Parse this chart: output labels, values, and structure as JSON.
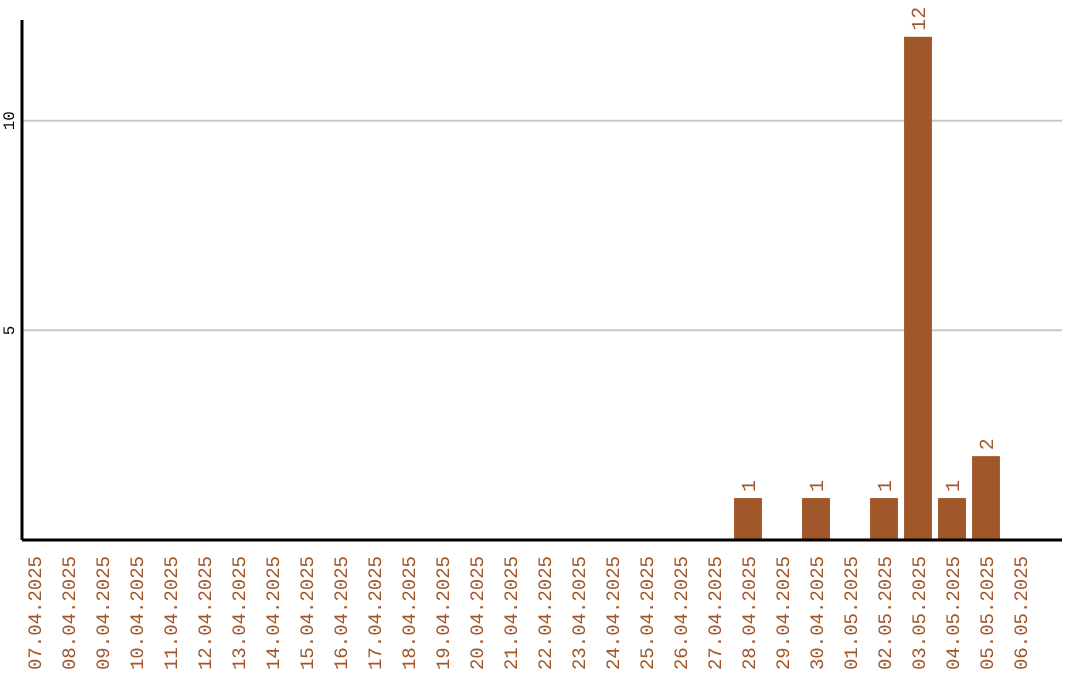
{
  "chart_data": {
    "type": "bar",
    "categories": [
      "07.04.2025",
      "08.04.2025",
      "09.04.2025",
      "10.04.2025",
      "11.04.2025",
      "12.04.2025",
      "13.04.2025",
      "14.04.2025",
      "15.04.2025",
      "16.04.2025",
      "17.04.2025",
      "18.04.2025",
      "19.04.2025",
      "20.04.2025",
      "21.04.2025",
      "22.04.2025",
      "23.04.2025",
      "24.04.2025",
      "25.04.2025",
      "26.04.2025",
      "27.04.2025",
      "28.04.2025",
      "29.04.2025",
      "30.04.2025",
      "01.05.2025",
      "02.05.2025",
      "03.05.2025",
      "04.05.2025",
      "05.05.2025",
      "06.05.2025"
    ],
    "values": [
      0,
      0,
      0,
      0,
      0,
      0,
      0,
      0,
      0,
      0,
      0,
      0,
      0,
      0,
      0,
      0,
      0,
      0,
      0,
      0,
      0,
      1,
      0,
      1,
      0,
      1,
      12,
      1,
      2,
      0
    ],
    "value_labels": [
      null,
      null,
      null,
      null,
      null,
      null,
      null,
      null,
      null,
      null,
      null,
      null,
      null,
      null,
      null,
      null,
      null,
      null,
      null,
      null,
      null,
      "1",
      null,
      "1",
      null,
      "1",
      "12",
      "1",
      "2",
      null
    ],
    "color": "#a0572a",
    "ylim": [
      0,
      12.4
    ],
    "yticks": [
      5,
      10
    ],
    "grid": "y"
  }
}
